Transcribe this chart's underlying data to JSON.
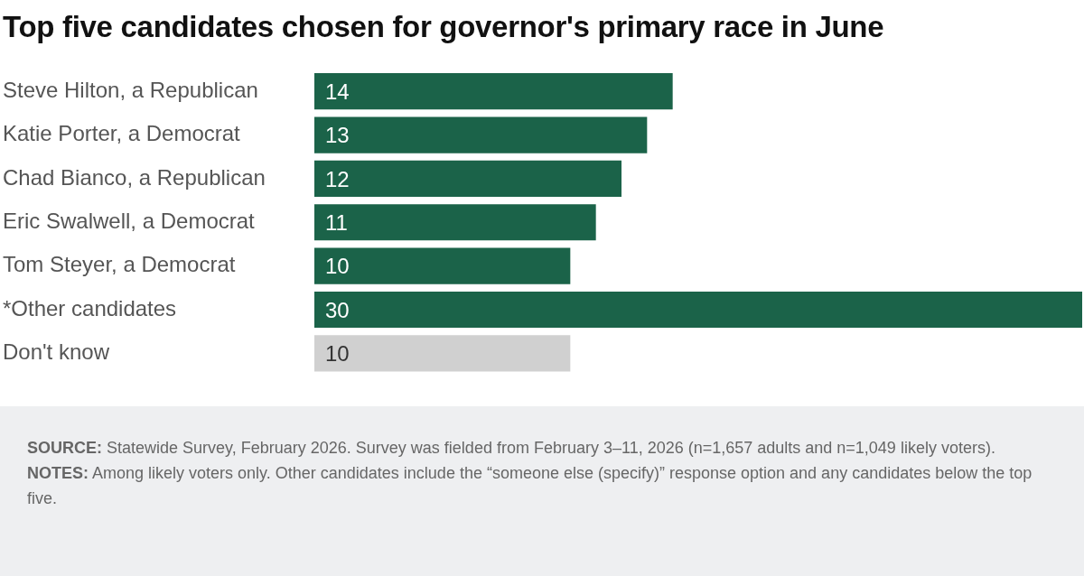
{
  "chart_data": {
    "type": "bar",
    "orientation": "horizontal",
    "title": "Top five candidates chosen for governor's primary race in June",
    "categories": [
      "Steve Hilton, a Republican",
      "Katie Porter, a Democrat",
      "Chad Bianco, a Republican",
      "Eric Swalwell, a Democrat",
      "Tom Steyer, a Democrat",
      "*Other candidates",
      "Don't know"
    ],
    "values": [
      14,
      13,
      12,
      11,
      10,
      30,
      10
    ],
    "colors": [
      "#1b6349",
      "#1b6349",
      "#1b6349",
      "#1b6349",
      "#1b6349",
      "#1b6349",
      "#d0d0d0"
    ],
    "xlim": [
      0,
      30
    ],
    "tick_labels": "y",
    "legend": false,
    "data_labels": true,
    "annotations": [
      "SOURCE: Statewide Survey, February 2026. Survey was fielded from February 3–11, 2026 (n=1,657 adults and n=1,049 likely voters).",
      "NOTES: Among likely voters only. Other candidates include the “someone else (specify)” response option and any candidates below the top five."
    ]
  }
}
